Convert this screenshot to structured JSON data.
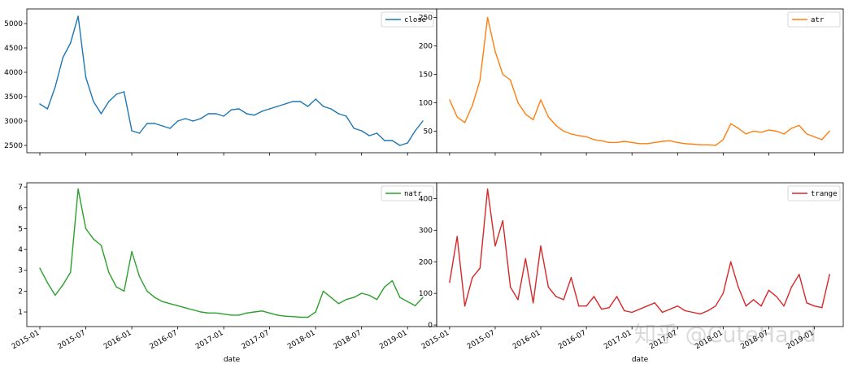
{
  "watermark": "知乎 @CuteHand",
  "chart_data": [
    {
      "type": "line",
      "series": [
        {
          "name": "close",
          "color": "#1f77b4"
        }
      ],
      "ylim": [
        2350,
        5300
      ],
      "yticks": [
        2500,
        3000,
        3500,
        4000,
        4500,
        5000
      ],
      "xlabel": "",
      "legend_placement": "top-right",
      "x": [
        "2015-01",
        "2015-02",
        "2015-03",
        "2015-04",
        "2015-05",
        "2015-06",
        "2015-07",
        "2015-08",
        "2015-09",
        "2015-10",
        "2015-11",
        "2015-12",
        "2016-01",
        "2016-02",
        "2016-03",
        "2016-04",
        "2016-05",
        "2016-06",
        "2016-07",
        "2016-08",
        "2016-09",
        "2016-10",
        "2016-11",
        "2016-12",
        "2017-01",
        "2017-02",
        "2017-03",
        "2017-04",
        "2017-05",
        "2017-06",
        "2017-07",
        "2017-08",
        "2017-09",
        "2017-10",
        "2017-11",
        "2017-12",
        "2018-01",
        "2018-02",
        "2018-03",
        "2018-04",
        "2018-05",
        "2018-06",
        "2018-07",
        "2018-08",
        "2018-09",
        "2018-10",
        "2018-11",
        "2018-12",
        "2019-01",
        "2019-02",
        "2019-03"
      ],
      "values": [
        3350,
        3250,
        3700,
        4300,
        4600,
        5150,
        3900,
        3400,
        3150,
        3400,
        3550,
        3600,
        2800,
        2750,
        2950,
        2950,
        2900,
        2850,
        3000,
        3050,
        3000,
        3050,
        3150,
        3150,
        3100,
        3230,
        3250,
        3150,
        3120,
        3200,
        3250,
        3300,
        3350,
        3400,
        3400,
        3300,
        3450,
        3300,
        3250,
        3150,
        3100,
        2850,
        2800,
        2700,
        2750,
        2600,
        2600,
        2500,
        2550,
        2800,
        3000
      ]
    },
    {
      "type": "line",
      "series": [
        {
          "name": "atr",
          "color": "#ff7f0e"
        }
      ],
      "ylim": [
        12,
        265
      ],
      "yticks": [
        50,
        100,
        150,
        200,
        250
      ],
      "xlabel": "",
      "legend_placement": "top-right",
      "x": [
        "2015-01",
        "2015-02",
        "2015-03",
        "2015-04",
        "2015-05",
        "2015-06",
        "2015-07",
        "2015-08",
        "2015-09",
        "2015-10",
        "2015-11",
        "2015-12",
        "2016-01",
        "2016-02",
        "2016-03",
        "2016-04",
        "2016-05",
        "2016-06",
        "2016-07",
        "2016-08",
        "2016-09",
        "2016-10",
        "2016-11",
        "2016-12",
        "2017-01",
        "2017-02",
        "2017-03",
        "2017-04",
        "2017-05",
        "2017-06",
        "2017-07",
        "2017-08",
        "2017-09",
        "2017-10",
        "2017-11",
        "2017-12",
        "2018-01",
        "2018-02",
        "2018-03",
        "2018-04",
        "2018-05",
        "2018-06",
        "2018-07",
        "2018-08",
        "2018-09",
        "2018-10",
        "2018-11",
        "2018-12",
        "2019-01",
        "2019-02",
        "2019-03"
      ],
      "values": [
        105,
        75,
        65,
        95,
        140,
        250,
        190,
        150,
        140,
        100,
        80,
        70,
        105,
        75,
        60,
        50,
        45,
        42,
        40,
        35,
        33,
        30,
        30,
        32,
        30,
        28,
        28,
        30,
        32,
        33,
        30,
        28,
        27,
        26,
        26,
        25,
        35,
        63,
        55,
        45,
        50,
        48,
        52,
        50,
        45,
        55,
        60,
        45,
        40,
        35,
        50
      ]
    },
    {
      "type": "line",
      "series": [
        {
          "name": "natr",
          "color": "#2ca02c"
        }
      ],
      "ylim": [
        0.3,
        7.2
      ],
      "yticks": [
        1,
        2,
        3,
        4,
        5,
        6,
        7
      ],
      "xlabel": "date",
      "legend_placement": "top-right",
      "xtick_labels": [
        "2015-01",
        "2015-07",
        "2016-01",
        "2016-07",
        "2017-01",
        "2017-07",
        "2018-01",
        "2018-07",
        "2019-01"
      ],
      "x": [
        "2015-01",
        "2015-02",
        "2015-03",
        "2015-04",
        "2015-05",
        "2015-06",
        "2015-07",
        "2015-08",
        "2015-09",
        "2015-10",
        "2015-11",
        "2015-12",
        "2016-01",
        "2016-02",
        "2016-03",
        "2016-04",
        "2016-05",
        "2016-06",
        "2016-07",
        "2016-08",
        "2016-09",
        "2016-10",
        "2016-11",
        "2016-12",
        "2017-01",
        "2017-02",
        "2017-03",
        "2017-04",
        "2017-05",
        "2017-06",
        "2017-07",
        "2017-08",
        "2017-09",
        "2017-10",
        "2017-11",
        "2017-12",
        "2018-01",
        "2018-02",
        "2018-03",
        "2018-04",
        "2018-05",
        "2018-06",
        "2018-07",
        "2018-08",
        "2018-09",
        "2018-10",
        "2018-11",
        "2018-12",
        "2019-01",
        "2019-02",
        "2019-03"
      ],
      "values": [
        3.1,
        2.4,
        1.8,
        2.3,
        2.9,
        6.9,
        5.0,
        4.5,
        4.2,
        2.9,
        2.2,
        2.0,
        3.9,
        2.7,
        2.0,
        1.7,
        1.5,
        1.4,
        1.3,
        1.2,
        1.1,
        1.0,
        0.95,
        0.95,
        0.9,
        0.85,
        0.85,
        0.95,
        1.0,
        1.05,
        0.95,
        0.85,
        0.8,
        0.78,
        0.75,
        0.75,
        1.0,
        2.0,
        1.7,
        1.4,
        1.6,
        1.7,
        1.9,
        1.8,
        1.6,
        2.2,
        2.5,
        1.7,
        1.5,
        1.3,
        1.7
      ]
    },
    {
      "type": "line",
      "series": [
        {
          "name": "trange",
          "color": "#d62728"
        }
      ],
      "ylim": [
        -5,
        450
      ],
      "yticks": [
        0,
        100,
        200,
        300,
        400
      ],
      "xlabel": "date",
      "legend_placement": "top-right",
      "xtick_labels": [
        "2015-01",
        "2015-07",
        "2016-01",
        "2016-07",
        "2017-01",
        "2017-07",
        "2018-01",
        "2018-07",
        "2019-01"
      ],
      "x": [
        "2015-01",
        "2015-02",
        "2015-03",
        "2015-04",
        "2015-05",
        "2015-06",
        "2015-07",
        "2015-08",
        "2015-09",
        "2015-10",
        "2015-11",
        "2015-12",
        "2016-01",
        "2016-02",
        "2016-03",
        "2016-04",
        "2016-05",
        "2016-06",
        "2016-07",
        "2016-08",
        "2016-09",
        "2016-10",
        "2016-11",
        "2016-12",
        "2017-01",
        "2017-02",
        "2017-03",
        "2017-04",
        "2017-05",
        "2017-06",
        "2017-07",
        "2017-08",
        "2017-09",
        "2017-10",
        "2017-11",
        "2017-12",
        "2018-01",
        "2018-02",
        "2018-03",
        "2018-04",
        "2018-05",
        "2018-06",
        "2018-07",
        "2018-08",
        "2018-09",
        "2018-10",
        "2018-11",
        "2018-12",
        "2019-01",
        "2019-02",
        "2019-03"
      ],
      "values": [
        135,
        280,
        60,
        150,
        180,
        430,
        250,
        330,
        120,
        80,
        210,
        70,
        250,
        120,
        90,
        80,
        150,
        60,
        60,
        90,
        50,
        55,
        90,
        45,
        40,
        50,
        60,
        70,
        40,
        50,
        60,
        45,
        40,
        35,
        45,
        60,
        100,
        200,
        120,
        60,
        80,
        60,
        110,
        90,
        60,
        120,
        160,
        70,
        60,
        55,
        160
      ]
    }
  ]
}
